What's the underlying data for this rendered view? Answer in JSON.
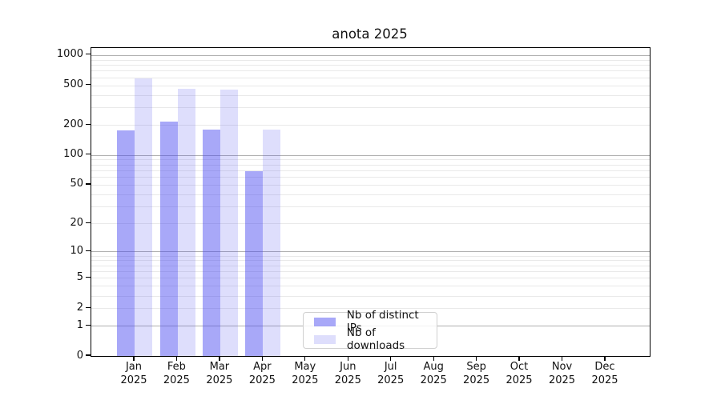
{
  "chart": {
    "title": "anota 2025",
    "legend": {
      "items": [
        {
          "label": "Nb of distinct IPs",
          "color": "rgba(70,70,240,0.47)"
        },
        {
          "label": "Nb of downloads",
          "color": "rgba(70,70,240,0.18)"
        }
      ]
    }
  },
  "chart_data": {
    "type": "bar",
    "title": "anota 2025",
    "categories": [
      "Jan 2025",
      "Feb 2025",
      "Mar 2025",
      "Apr 2025",
      "May 2025",
      "Jun 2025",
      "Jul 2025",
      "Aug 2025",
      "Sep 2025",
      "Oct 2025",
      "Nov 2025",
      "Dec 2025"
    ],
    "series": [
      {
        "name": "Nb of distinct IPs",
        "color": "rgba(70,70,240,0.47)",
        "values": [
          175,
          215,
          180,
          68,
          0,
          0,
          0,
          0,
          0,
          0,
          0,
          0
        ]
      },
      {
        "name": "Nb of downloads",
        "color": "rgba(70,70,240,0.18)",
        "values": [
          590,
          460,
          455,
          180,
          0,
          0,
          0,
          0,
          0,
          0,
          0,
          0
        ]
      }
    ],
    "xlabel": "",
    "ylabel": "",
    "yscale": "log1p",
    "ylim": [
      0,
      1175
    ],
    "yticks": [
      0,
      1,
      2,
      5,
      10,
      20,
      50,
      100,
      200,
      500,
      1000
    ],
    "grid": {
      "axis": "y",
      "major_ticks": [
        1,
        10,
        100,
        1000
      ],
      "minor_multiples": [
        2,
        3,
        4,
        5,
        6,
        7,
        8,
        9
      ],
      "major_color": "#b0b0b0",
      "minor_color": "#e9e9e9"
    },
    "legend_position": "lower-center-inside",
    "bar_layout": "paired: series 0 left of month tick, series 1 right of month tick"
  }
}
